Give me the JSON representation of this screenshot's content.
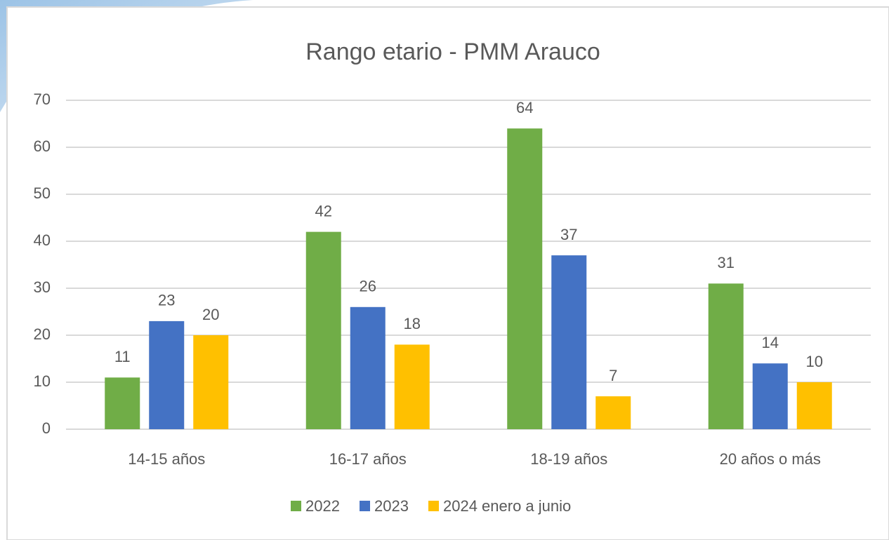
{
  "chart_data": {
    "type": "bar",
    "title": "Rango etario - PMM Arauco",
    "categories": [
      "14-15 años",
      "16-17 años",
      "18-19 años",
      "20 años o más"
    ],
    "series": [
      {
        "name": "2022",
        "color": "#70ad47",
        "values": [
          11,
          42,
          64,
          31
        ]
      },
      {
        "name": "2023",
        "color": "#4472c4",
        "values": [
          23,
          26,
          37,
          14
        ]
      },
      {
        "name": "2024 enero a junio",
        "color": "#ffc000",
        "values": [
          20,
          18,
          7,
          10
        ]
      }
    ],
    "ylim": [
      0,
      70
    ],
    "yticks": [
      0,
      10,
      20,
      30,
      40,
      50,
      60,
      70
    ],
    "grid": true,
    "legend": "bottom"
  }
}
